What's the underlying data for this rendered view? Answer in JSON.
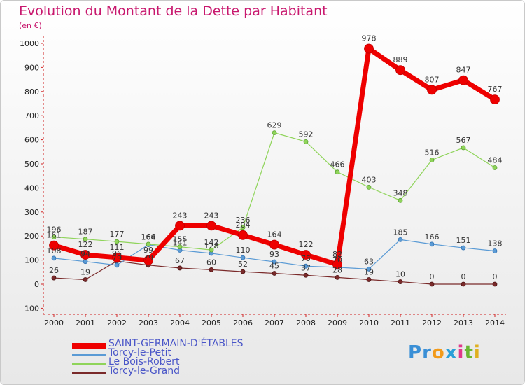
{
  "title": "Evolution du Montant de la Dette par Habitant",
  "subtitle": "(en €)",
  "logo": {
    "letters": [
      "P",
      "r",
      "o",
      "x",
      "i",
      "t",
      "i"
    ],
    "colors": [
      "#3a8fd6",
      "#3a8fd6",
      "#f29a1a",
      "#2aa0d8",
      "#e03a8a",
      "#6ab832",
      "#e0b020"
    ]
  },
  "chart_data": {
    "type": "line",
    "x": [
      "2000",
      "2001",
      "2002",
      "2003",
      "2004",
      "2005",
      "2006",
      "2007",
      "2008",
      "2009",
      "2010",
      "2011",
      "2012",
      "2013",
      "2014"
    ],
    "yticks": [
      "-100",
      "0",
      "100",
      "200",
      "300",
      "400",
      "500",
      "600",
      "700",
      "800",
      "900",
      "1000"
    ],
    "ylim": [
      -100,
      1000
    ],
    "grid": false,
    "series": [
      {
        "name": "SAINT-GERMAIN-D'ÉTABLES",
        "color": "#ee0000",
        "values": [
          161,
          122,
          111,
          99,
          243,
          243,
          204,
          164,
          122,
          82,
          978,
          889,
          807,
          847,
          767
        ],
        "labels": [
          "161",
          "122",
          "111",
          "99",
          "243",
          "243",
          "204",
          "164",
          "122",
          "82",
          "978",
          "889",
          "807",
          "847",
          "767"
        ]
      },
      {
        "name": "Torcy-le-Petit",
        "color": "#5b9bd5",
        "values": [
          108,
          94,
          79,
          164,
          141,
          128,
          110,
          93,
          75,
          70,
          63,
          185,
          166,
          151,
          138
        ],
        "labels": [
          "108",
          "94",
          "79",
          "164",
          "141",
          "128",
          "110",
          "93",
          "75",
          "70",
          "63",
          "185",
          "166",
          "151",
          "138"
        ]
      },
      {
        "name": "Le Bois-Robert",
        "color": "#8fd45a",
        "values": [
          196,
          187,
          177,
          166,
          155,
          142,
          236,
          629,
          592,
          466,
          403,
          348,
          516,
          567,
          484
        ],
        "labels": [
          "196",
          "187",
          "177",
          "166",
          "155",
          "142",
          "236",
          "629",
          "592",
          "466",
          "403",
          "348",
          "516",
          "567",
          "484"
        ]
      },
      {
        "name": "Torcy-le-Grand",
        "color": "#7a2a2a",
        "values": [
          26,
          19,
          96,
          79,
          67,
          60,
          52,
          45,
          37,
          28,
          19,
          10,
          0,
          0,
          0
        ],
        "labels": [
          "26",
          "19",
          "96",
          "79",
          "67",
          "60",
          "52",
          "45",
          "37",
          "28",
          "19",
          "10",
          "0",
          "0",
          "0"
        ]
      }
    ]
  }
}
